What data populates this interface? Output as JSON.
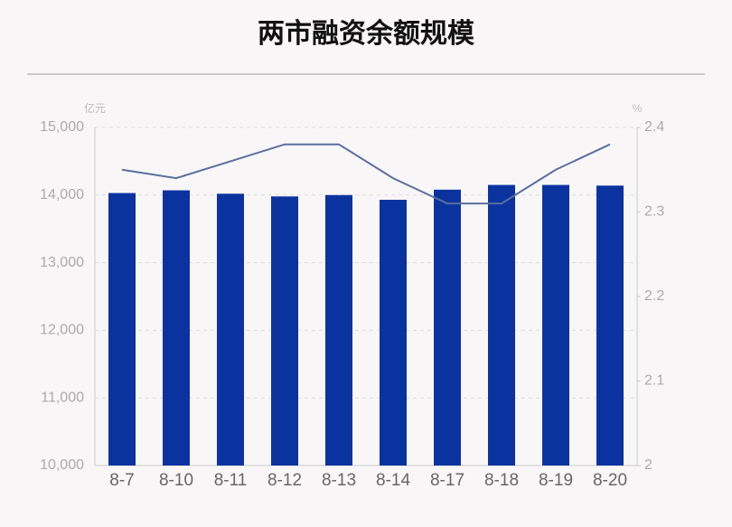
{
  "chart_data": {
    "type": "combo",
    "title": "两市融资余额规模",
    "y_unit": "亿元",
    "y2_unit": "%",
    "categories": [
      "8-7",
      "8-10",
      "8-11",
      "8-12",
      "8-13",
      "8-14",
      "8-17",
      "8-18",
      "8-19",
      "8-20"
    ],
    "series": [
      {
        "type": "bar",
        "color": "#0b33a0",
        "values": [
          14030,
          14070,
          14020,
          13980,
          14000,
          13930,
          14080,
          14150,
          14150,
          14140
        ]
      },
      {
        "type": "line",
        "axis": "y2",
        "color": "#5a6f9e",
        "values": [
          2.35,
          2.34,
          2.36,
          2.38,
          2.38,
          2.34,
          2.31,
          2.31,
          2.35,
          2.38
        ]
      }
    ],
    "ylim": [
      10000,
      15000
    ],
    "yticks": [
      {
        "value": 10000,
        "label": "10,000"
      },
      {
        "value": 11000,
        "label": "11,000"
      },
      {
        "value": 12000,
        "label": "12,000"
      },
      {
        "value": 13000,
        "label": "13,000"
      },
      {
        "value": 14000,
        "label": "14,000"
      },
      {
        "value": 15000,
        "label": "15,000"
      }
    ],
    "y2lim": [
      2,
      2.4
    ],
    "y2ticks": [
      2,
      2.1,
      2.2,
      2.3,
      2.4
    ],
    "grid": true
  }
}
